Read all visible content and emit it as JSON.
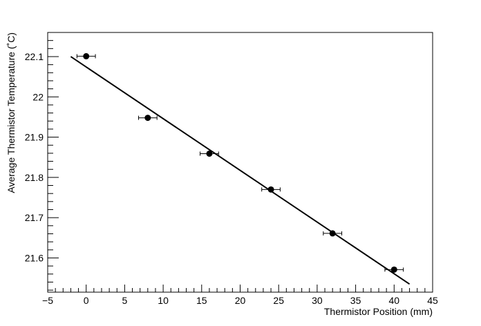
{
  "chart_data": {
    "type": "scatter",
    "xlabel": "Thermistor Position (mm)",
    "ylabel": "Average Thermistor Temperature (˚C)",
    "xlim": [
      -5,
      45
    ],
    "ylim": [
      21.515,
      22.16
    ],
    "x_ticks": [
      -5,
      0,
      5,
      10,
      15,
      20,
      25,
      30,
      35,
      40,
      45
    ],
    "x_tick_labels": [
      "−5",
      "0",
      "5",
      "10",
      "15",
      "20",
      "25",
      "30",
      "35",
      "40",
      "45"
    ],
    "y_ticks": [
      21.6,
      21.7,
      21.8,
      21.9,
      22.0,
      22.1
    ],
    "y_tick_labels": [
      "21.6",
      "21.7",
      "21.8",
      "21.9",
      "22",
      "22.1"
    ],
    "grid": false,
    "series": [
      {
        "x": [
          0,
          8,
          16,
          24,
          32,
          40
        ],
        "y": [
          22.101,
          21.948,
          21.859,
          21.77,
          21.661,
          21.571
        ],
        "x_err": [
          1.2,
          1.2,
          1.2,
          1.2,
          1.2,
          1.2
        ],
        "y_err": [
          0.003,
          0.003,
          0.003,
          0.003,
          0.003,
          0.003
        ]
      }
    ],
    "fit_line": {
      "x": [
        -2,
        42
      ],
      "y": [
        22.1,
        21.535
      ]
    }
  }
}
